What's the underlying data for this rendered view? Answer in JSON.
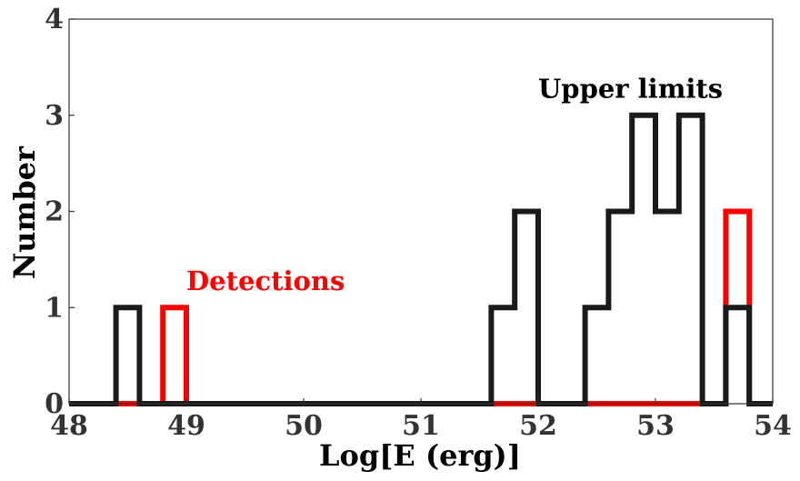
{
  "chart_data": {
    "type": "histogram",
    "xlabel": "Log[E (erg)]",
    "ylabel": "Number",
    "xlim": [
      48,
      54
    ],
    "ylim": [
      0,
      4
    ],
    "x_ticks": [
      "48",
      "49",
      "50",
      "51",
      "52",
      "53",
      "54"
    ],
    "y_ticks": [
      "0",
      "1",
      "2",
      "3",
      "4"
    ],
    "grid": false,
    "bin_edges": [
      48.4,
      48.6,
      48.8,
      49.0,
      49.2,
      49.4,
      49.6,
      49.8,
      50.0,
      50.2,
      50.4,
      50.6,
      50.8,
      51.0,
      51.2,
      51.4,
      51.6,
      51.8,
      52.0,
      52.2,
      52.4,
      52.6,
      52.8,
      53.0,
      53.2,
      53.4,
      53.6,
      53.8
    ],
    "series": [
      {
        "label": "Upper limits",
        "color": "#1a1a1a",
        "counts": [
          1,
          0,
          0,
          0,
          0,
          0,
          0,
          0,
          0,
          0,
          0,
          0,
          0,
          0,
          0,
          0,
          1,
          2,
          0,
          0,
          1,
          2,
          3,
          2,
          3,
          0,
          1
        ]
      },
      {
        "label": "Detections",
        "color": "#ff0000",
        "counts": [
          0,
          0,
          1,
          0,
          0,
          0,
          0,
          0,
          0,
          0,
          0,
          0,
          0,
          0,
          0,
          0,
          0,
          0,
          0,
          0,
          0,
          0,
          0,
          0,
          0,
          0,
          2
        ]
      }
    ],
    "annotations": [
      {
        "text": "Upper limits",
        "x": 52.0,
        "y": 3.18,
        "color": "#000000"
      },
      {
        "text": "Detections",
        "x": 49.0,
        "y": 1.18,
        "color": "#ff0000"
      }
    ]
  }
}
